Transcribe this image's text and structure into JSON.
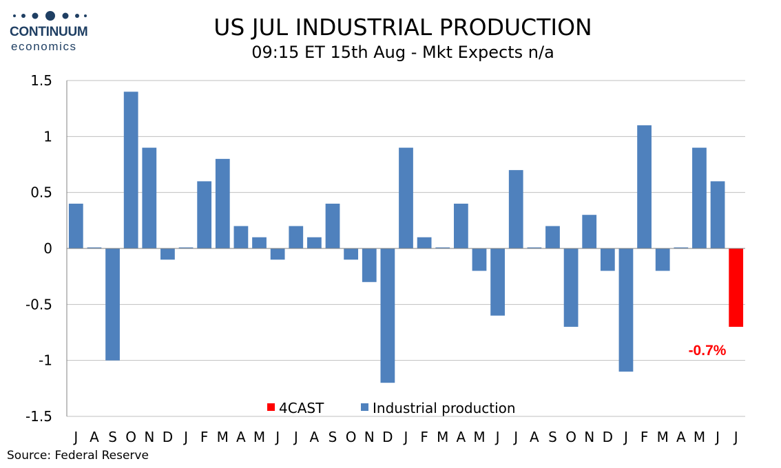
{
  "logo": {
    "name": "CONTINUUM",
    "sub": "economics"
  },
  "header": {
    "title": "US JUL INDUSTRIAL PRODUCTION",
    "subtitle": "09:15 ET 15th Aug - Mkt Expects n/a"
  },
  "footer": {
    "source": "Source: Federal Reserve"
  },
  "colors": {
    "series": "#4f81bd",
    "forecast": "#ff0000",
    "grid": "#bfbfbf",
    "logo": "#1f3f63"
  },
  "chart_data": {
    "type": "bar",
    "categories": [
      "J",
      "A",
      "S",
      "O",
      "N",
      "D",
      "J",
      "F",
      "M",
      "A",
      "M",
      "J",
      "J",
      "A",
      "S",
      "O",
      "N",
      "D",
      "J",
      "F",
      "M",
      "A",
      "M",
      "J",
      "J",
      "A",
      "S",
      "O",
      "N",
      "D",
      "J",
      "F",
      "M",
      "A",
      "M",
      "J",
      "J"
    ],
    "series": [
      {
        "name": "Industrial production",
        "values": [
          0.4,
          0.0,
          -1.0,
          1.4,
          0.9,
          -0.1,
          0.0,
          0.6,
          0.8,
          0.2,
          0.1,
          -0.1,
          0.2,
          0.1,
          0.4,
          -0.1,
          -0.3,
          -1.2,
          0.9,
          0.1,
          0.0,
          0.4,
          -0.2,
          -0.6,
          0.7,
          0.0,
          0.2,
          -0.7,
          0.3,
          -0.2,
          -1.1,
          1.1,
          -0.2,
          0.0,
          0.9,
          0.6,
          null
        ]
      },
      {
        "name": "4CAST",
        "values": [
          null,
          null,
          null,
          null,
          null,
          null,
          null,
          null,
          null,
          null,
          null,
          null,
          null,
          null,
          null,
          null,
          null,
          null,
          null,
          null,
          null,
          null,
          null,
          null,
          null,
          null,
          null,
          null,
          null,
          null,
          null,
          null,
          null,
          null,
          null,
          null,
          -0.7
        ]
      }
    ],
    "yticks": [
      "1.5",
      "1",
      "0.5",
      "0",
      "-0.5",
      "-1",
      "-1.5"
    ],
    "ylim": [
      -1.5,
      1.5
    ],
    "grid": true,
    "legend_position": "bottom-center",
    "annotation": "-0.7%"
  }
}
